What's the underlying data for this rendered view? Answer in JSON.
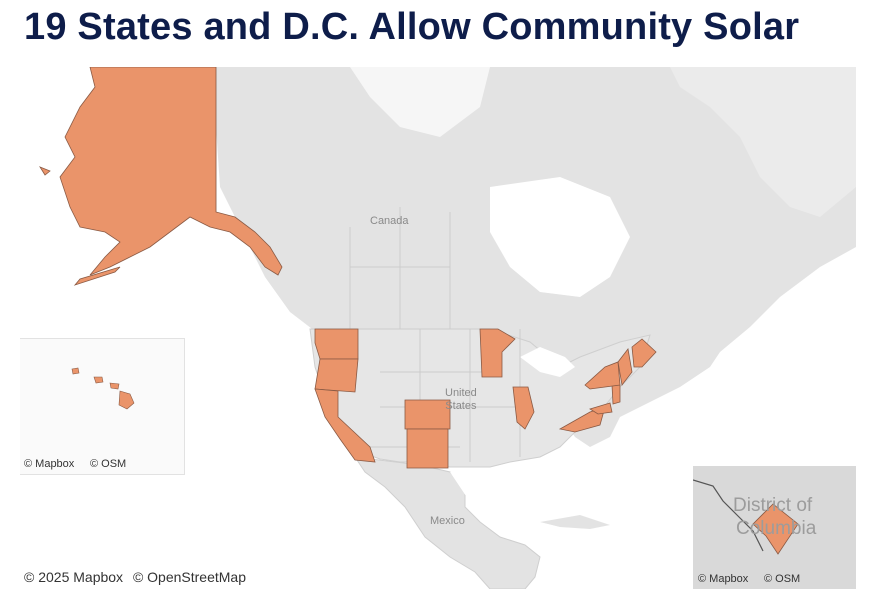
{
  "title": "19 States and D.C. Allow Community Solar",
  "colors": {
    "highlight": "#ea946a",
    "highlight_border": "#8a5a44",
    "land": "#e3e3e3",
    "water": "#ffffff",
    "border": "#c9c9c9",
    "title": "#0e1d4a"
  },
  "map_labels": {
    "canada": "Canada",
    "united_states": "United\nStates",
    "mexico": "Mexico"
  },
  "highlighted_states": [
    "Alaska",
    "Hawaii",
    "Washington",
    "Oregon",
    "California",
    "Colorado",
    "New Mexico",
    "Minnesota",
    "Illinois",
    "Virginia",
    "Maryland",
    "Delaware",
    "New Jersey",
    "New York",
    "Connecticut",
    "Rhode Island",
    "Massachusetts",
    "Vermont",
    "Maine",
    "District of Columbia"
  ],
  "insets": {
    "hawaii": {
      "attribution_mapbox": "© Mapbox",
      "attribution_osm": "© OSM"
    },
    "dc": {
      "label_line1": "District of",
      "label_line2": "Columbia",
      "attribution_mapbox": "© Mapbox",
      "attribution_osm": "© OSM"
    }
  },
  "attribution": {
    "mapbox": "© 2025 Mapbox",
    "osm": "© OpenStreetMap"
  }
}
